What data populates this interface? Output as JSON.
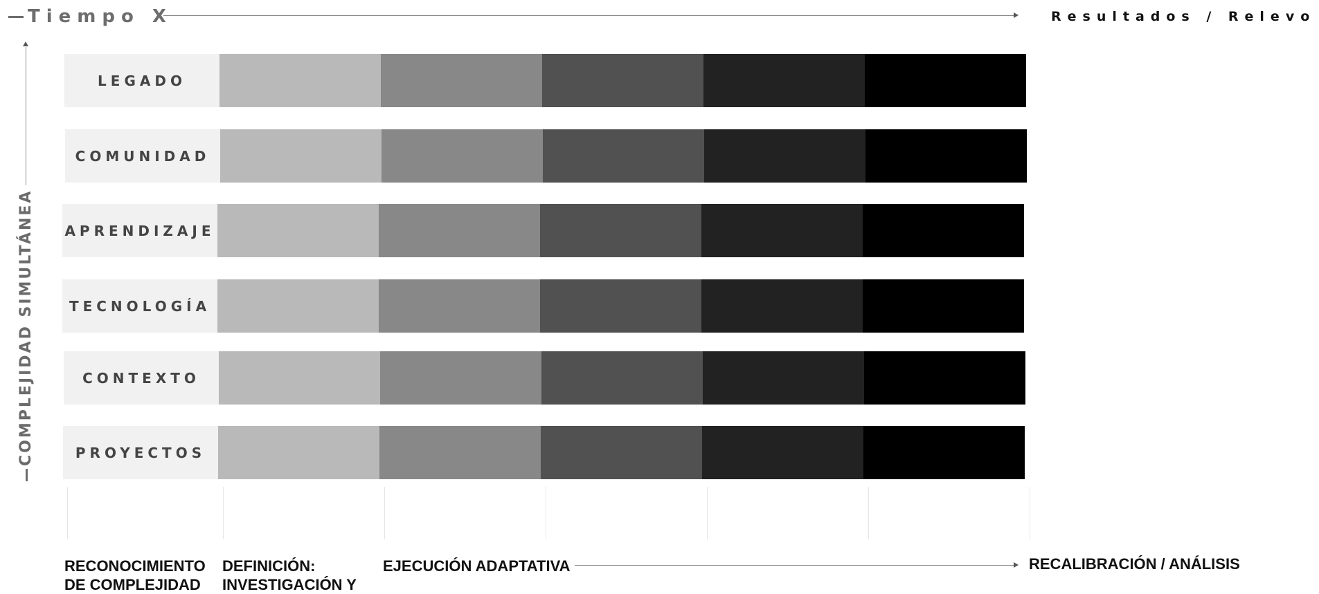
{
  "header": {
    "time_axis_label": "Tiempo X",
    "results_label": "Resultados / Relevo"
  },
  "vertical_axis_label": "COMPLEJIDAD SIMULTÁNEA",
  "rows": [
    {
      "label": "LEGADO"
    },
    {
      "label": "COMUNIDAD"
    },
    {
      "label": "APRENDIZAJE"
    },
    {
      "label": "TECNOLOGÍA"
    },
    {
      "label": "CONTEXTO"
    },
    {
      "label": "PROYECTOS"
    }
  ],
  "segment_colors": [
    "#b9b9b9",
    "#888888",
    "#515151",
    "#222222",
    "#000000",
    "#ff1a4b"
  ],
  "phases": {
    "p1_line1": "RECONOCIMIENTO",
    "p1_line2": "DE COMPLEJIDAD",
    "p2_line1": "DEFINICIÓN:",
    "p2_line2": "INVESTIGACIÓN Y",
    "p3": "EJECUCIÓN ADAPTATIVA",
    "p4": "RECALIBRACIÓN / ANÁLISIS"
  }
}
